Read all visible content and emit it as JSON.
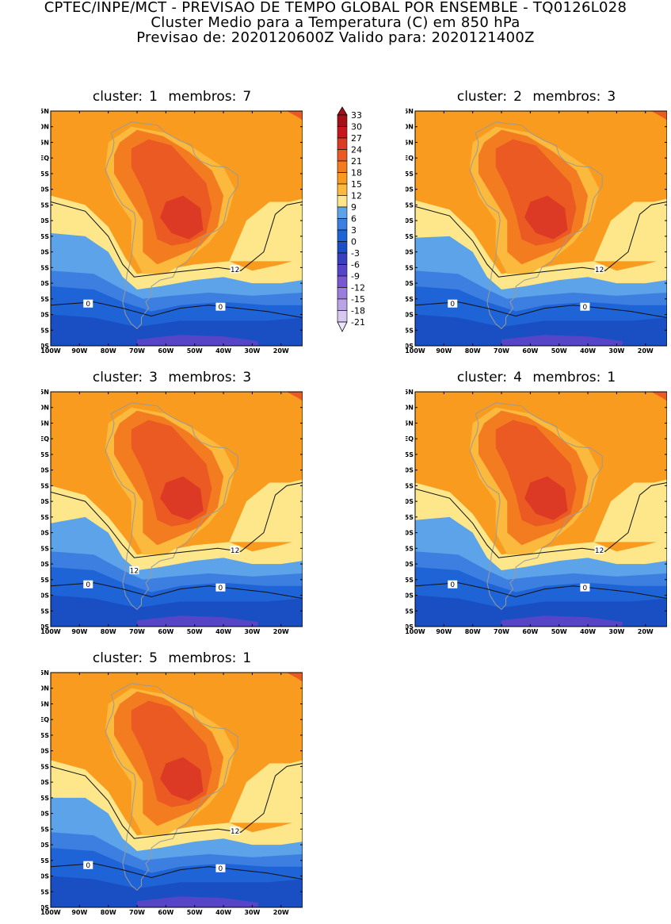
{
  "header": {
    "line1": "CPTEC/INPE/MCT - PREVISAO DE TEMPO GLOBAL POR ENSEMBLE - TQ0126L028",
    "line2": "Cluster Medio para a Temperatura (C) em 850 hPa",
    "line3": "Previsao de: 2020120600Z    Valido para: 2020121400Z"
  },
  "axes": {
    "lat_labels": [
      "15N",
      "10N",
      "5N",
      "EQ",
      "5S",
      "10S",
      "15S",
      "20S",
      "25S",
      "30S",
      "35S",
      "40S",
      "45S",
      "50S",
      "55S",
      "60S"
    ],
    "lon_labels": [
      "100W",
      "90W",
      "80W",
      "70W",
      "60W",
      "50W",
      "40W",
      "30W",
      "20W"
    ]
  },
  "colorbar": {
    "levels": [
      "33",
      "30",
      "27",
      "24",
      "21",
      "18",
      "15",
      "12",
      "9",
      "6",
      "3",
      "0",
      "-3",
      "-6",
      "-9",
      "-12",
      "-15",
      "-18",
      "-21"
    ],
    "colors": [
      "#a50f15",
      "#c8171c",
      "#dc3a24",
      "#ea5a22",
      "#f47c20",
      "#f99b1f",
      "#fbb93d",
      "#fde78a",
      "#5da3ea",
      "#3d7fe0",
      "#1e64d6",
      "#1a4fc4",
      "#3a3fc0",
      "#5745c8",
      "#7857d2",
      "#9a7ddc",
      "#b9a2e6",
      "#d6c8f0",
      "#ece4f8"
    ]
  },
  "clusters": [
    {
      "cluster_label": "cluster:",
      "cluster": "1",
      "members_label": "membros:",
      "members": "7",
      "contour_12": "12",
      "contour_0a": "0",
      "contour_0b": "0"
    },
    {
      "cluster_label": "cluster:",
      "cluster": "2",
      "members_label": "membros:",
      "members": "3",
      "contour_12": "12",
      "contour_0a": "0",
      "contour_0b": "0"
    },
    {
      "cluster_label": "cluster:",
      "cluster": "3",
      "members_label": "membros:",
      "members": "3",
      "contour_12": "12",
      "contour_12b": "12",
      "contour_0a": "0",
      "contour_0b": "0"
    },
    {
      "cluster_label": "cluster:",
      "cluster": "4",
      "members_label": "membros:",
      "members": "1",
      "contour_12": "12",
      "contour_0a": "0",
      "contour_0b": "0"
    },
    {
      "cluster_label": "cluster:",
      "cluster": "5",
      "members_label": "membros:",
      "members": "1",
      "contour_12": "12",
      "contour_0a": "0",
      "contour_0b": "0"
    }
  ]
}
